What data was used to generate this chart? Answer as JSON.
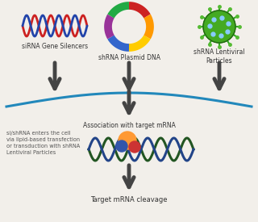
{
  "bg_color": "#f2efea",
  "labels": {
    "sirna": "siRNA Gene Silencers",
    "shrna_plasmid": "shRNA Plasmid DNA",
    "shrna_lenti": "shRNA Lentiviral\nParticles",
    "association": "Association with target mRNA",
    "cell_entry": "si/shRNA enters the cell\nvia lipid-based transfection\nor transduction with shRNA\nLentiviral Particles",
    "cleavage": "Target mRNA cleavage"
  },
  "arc_color": "#2288bb",
  "arrow_color": "#444444",
  "dna_strand1": "#cc2222",
  "dna_strand2": "#2244aa",
  "plasmid_colors": [
    "#cc2222",
    "#ff9900",
    "#ffcc00",
    "#3366cc",
    "#993399",
    "#22aa44"
  ],
  "lenti_green": "#44aa22",
  "lenti_spot": "#88ccff",
  "mrna_top": "#225522",
  "mrna_bot": "#224488",
  "risc_orange": "#ff9933",
  "risc_red": "#cc3333",
  "risc_blue": "#3355aa",
  "label_fs": 5.5,
  "small_fs": 4.8
}
